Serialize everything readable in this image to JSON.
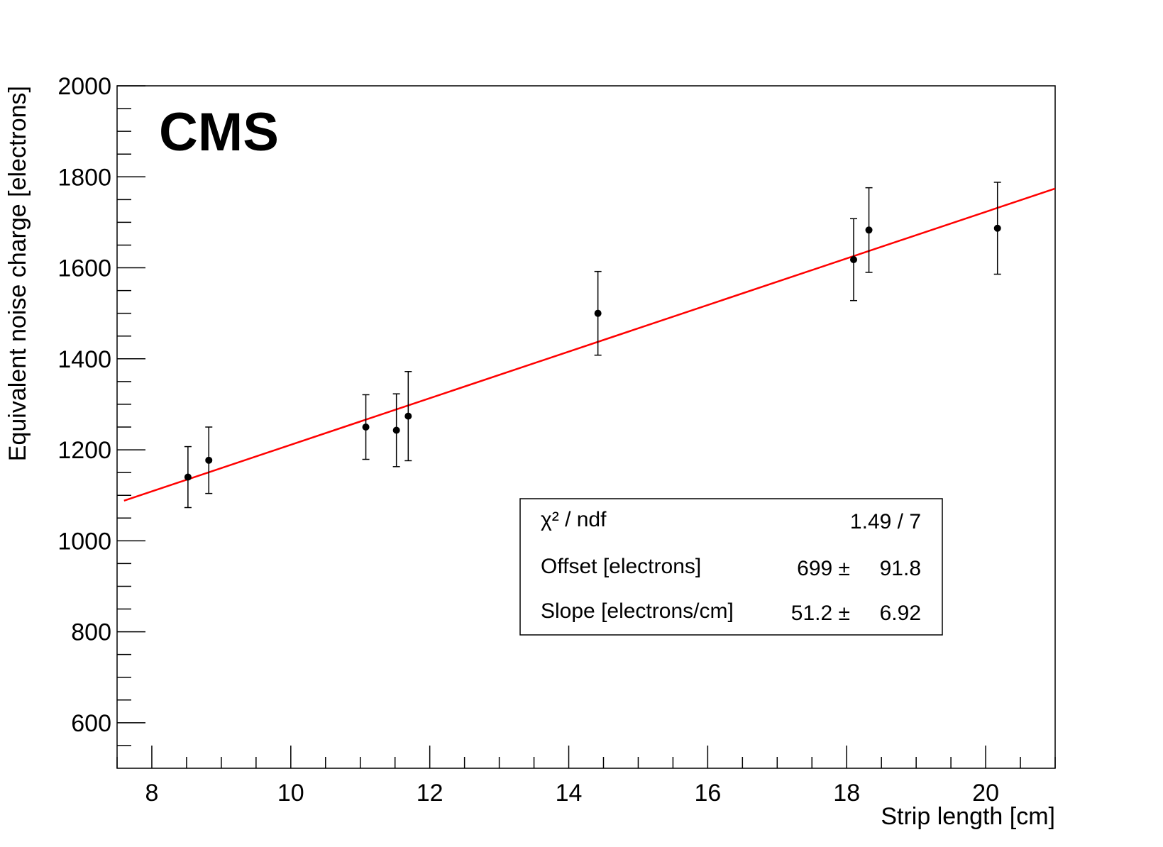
{
  "chart_data": {
    "type": "scatter",
    "experiment_label": "CMS",
    "xlabel": "Strip length [cm]",
    "ylabel": "Equivalent noise charge [electrons]",
    "xlim": [
      7.5,
      21
    ],
    "ylim": [
      500,
      2000
    ],
    "x_ticks": [
      8,
      10,
      12,
      14,
      16,
      18,
      20
    ],
    "y_ticks": [
      600,
      800,
      1000,
      1200,
      1400,
      1600,
      1800,
      2000
    ],
    "grid": false,
    "series": [
      {
        "style": "markers-with-errorbars",
        "color": "#000000",
        "points": [
          {
            "x": 8.52,
            "y": 1140,
            "err": 67
          },
          {
            "x": 8.82,
            "y": 1177,
            "err": 73
          },
          {
            "x": 11.08,
            "y": 1250,
            "err": 71
          },
          {
            "x": 11.52,
            "y": 1243,
            "err": 80
          },
          {
            "x": 11.69,
            "y": 1274,
            "err": 98
          },
          {
            "x": 14.42,
            "y": 1500,
            "err": 92
          },
          {
            "x": 18.1,
            "y": 1618,
            "err": 90
          },
          {
            "x": 18.32,
            "y": 1683,
            "err": 93
          },
          {
            "x": 20.17,
            "y": 1687,
            "err": 101
          }
        ]
      }
    ],
    "fit": {
      "type": "line",
      "color": "#ff0000",
      "offset": 699,
      "slope": 51.2,
      "x_range": [
        7.6,
        21
      ]
    },
    "stats_box": {
      "placement": "center-right",
      "rows": [
        {
          "label": "χ² / ndf",
          "value": "1.49 / 7",
          "error": ""
        },
        {
          "label": "Offset [electrons]",
          "value": "699 ±",
          "error": "91.8"
        },
        {
          "label": "Slope [electrons/cm]",
          "value": "51.2 ±",
          "error": "6.92"
        }
      ]
    }
  }
}
